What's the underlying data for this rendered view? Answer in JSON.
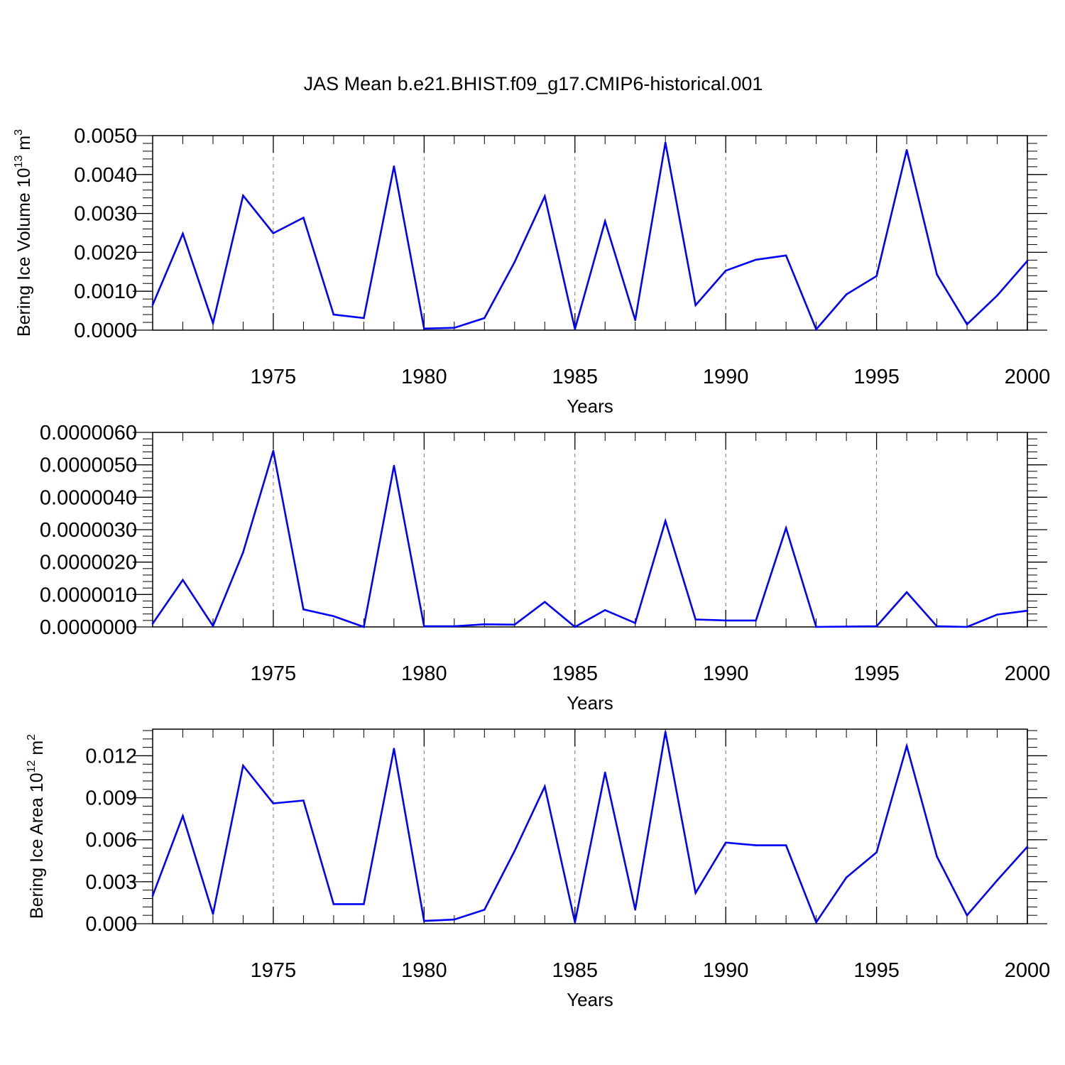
{
  "title": "JAS Mean b.e21.BHIST.f09_g17.CMIP6-historical.001",
  "line_color": "#0000ff",
  "chart_data": [
    {
      "type": "line",
      "ylabel_main": "Bering Ice Volume 10",
      "ylabel_sup": "13",
      "ylabel_unit": "m",
      "ylabel_unit_sup": "3",
      "xlabel": "Years",
      "xlim": [
        1971,
        2000
      ],
      "ylim": [
        0,
        0.005
      ],
      "x_ticks": [
        "1975",
        "1980",
        "1985",
        "1990",
        "1995",
        "2000"
      ],
      "y_ticks": [
        "0.0000",
        "0.0010",
        "0.0020",
        "0.0030",
        "0.0040",
        "0.0050"
      ],
      "x": [
        1971,
        1972,
        1973,
        1974,
        1975,
        1976,
        1977,
        1978,
        1979,
        1980,
        1981,
        1982,
        1983,
        1984,
        1985,
        1986,
        1987,
        1988,
        1989,
        1990,
        1991,
        1992,
        1993,
        1994,
        1995,
        1996,
        1997,
        1998,
        1999,
        2000
      ],
      "values": [
        0.00065,
        0.00248,
        0.00018,
        0.00346,
        0.00249,
        0.00289,
        0.0004,
        0.00031,
        0.00421,
        4e-05,
        6e-05,
        0.00031,
        0.00175,
        0.00344,
        3e-05,
        0.0028,
        0.00026,
        0.00482,
        0.00064,
        0.00153,
        0.00181,
        0.00192,
        2e-05,
        0.00092,
        0.00139,
        0.00463,
        0.00143,
        0.00015,
        0.00089,
        0.00178
      ]
    },
    {
      "type": "line",
      "xlabel": "Years",
      "xlim": [
        1971,
        2000
      ],
      "ylim": [
        0,
        6e-06
      ],
      "x_ticks": [
        "1975",
        "1980",
        "1985",
        "1990",
        "1995",
        "2000"
      ],
      "y_ticks": [
        "0.0000000",
        "0.0000010",
        "0.0000020",
        "0.0000030",
        "0.0000040",
        "0.0000050",
        "0.0000060"
      ],
      "x": [
        1971,
        1972,
        1973,
        1974,
        1975,
        1976,
        1977,
        1978,
        1979,
        1980,
        1981,
        1982,
        1983,
        1984,
        1985,
        1986,
        1987,
        1988,
        1989,
        1990,
        1991,
        1992,
        1993,
        1994,
        1995,
        1996,
        1997,
        1998,
        1999,
        2000
      ],
      "values": [
        1e-07,
        1.45e-06,
        3e-08,
        2.3e-06,
        5.43e-06,
        5.4e-07,
        3.3e-07,
        0.0,
        4.97e-06,
        2e-08,
        2e-08,
        8e-08,
        7e-08,
        7.7e-07,
        0.0,
        5.2e-07,
        1.2e-07,
        3.27e-06,
        2.3e-07,
        2e-07,
        2e-07,
        3.05e-06,
        0.0,
        1e-08,
        2e-08,
        1.07e-06,
        2e-08,
        0.0,
        3.8e-07,
        5e-07
      ]
    },
    {
      "type": "line",
      "ylabel_main": "Bering Ice Area 10",
      "ylabel_sup": "12",
      "ylabel_unit": "m",
      "ylabel_unit_sup": "2",
      "xlabel": "Years",
      "xlim": [
        1971,
        2000
      ],
      "ylim": [
        0,
        0.0139
      ],
      "x_ticks": [
        "1975",
        "1980",
        "1985",
        "1990",
        "1995",
        "2000"
      ],
      "y_ticks": [
        "0.000",
        "0.003",
        "0.006",
        "0.009",
        "0.012"
      ],
      "x": [
        1971,
        1972,
        1973,
        1974,
        1975,
        1976,
        1977,
        1978,
        1979,
        1980,
        1981,
        1982,
        1983,
        1984,
        1985,
        1986,
        1987,
        1988,
        1989,
        1990,
        1991,
        1992,
        1993,
        1994,
        1995,
        1996,
        1997,
        1998,
        1999,
        2000
      ],
      "values": [
        0.002,
        0.0077,
        0.0007,
        0.0113,
        0.0086,
        0.0088,
        0.0014,
        0.0014,
        0.0125,
        0.0002,
        0.0003,
        0.001,
        0.0052,
        0.0098,
        0.0001,
        0.0108,
        0.001,
        0.0137,
        0.0022,
        0.0058,
        0.0056,
        0.0056,
        0.0001,
        0.0033,
        0.0051,
        0.0127,
        0.0048,
        0.0006,
        0.0031,
        0.0055
      ]
    }
  ]
}
